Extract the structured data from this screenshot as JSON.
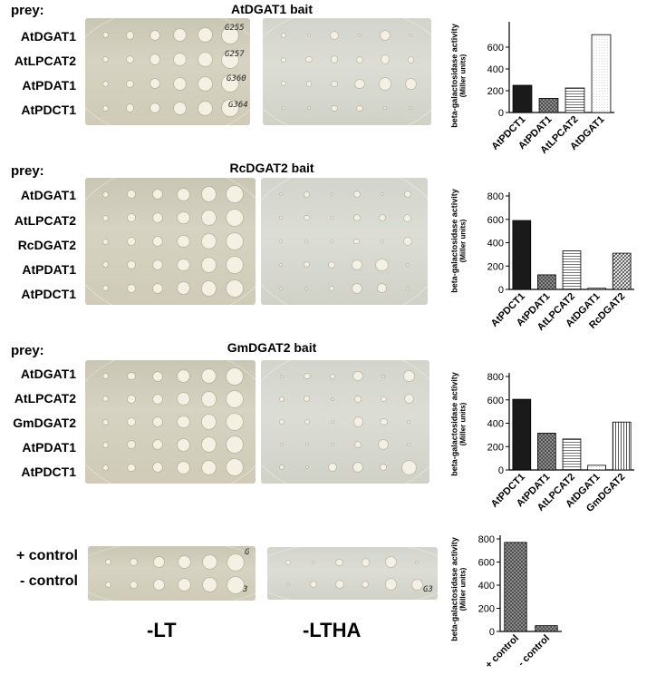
{
  "panels": [
    {
      "title": "AtDGAT1 bait",
      "prey_label": "prey:",
      "rows": [
        "AtDGAT1",
        "AtLPCAT2",
        "AtPDAT1",
        "AtPDCT1"
      ],
      "plate_marks": [
        "G255",
        "G257",
        "G360",
        "G364"
      ],
      "ylabel_line1": "beta-galactosidase activity",
      "ylabel_line2": "(Miller units)"
    },
    {
      "title": "RcDGAT2 bait",
      "prey_label": "prey:",
      "rows": [
        "AtDGAT1",
        "AtLPCAT2",
        "RcDGAT2",
        "AtPDAT1",
        "AtPDCT1"
      ],
      "plate_marks": [],
      "ylabel_line1": "beta-galactosidase activity",
      "ylabel_line2": "(Miller units)"
    },
    {
      "title": "GmDGAT2 bait",
      "prey_label": "prey:",
      "rows": [
        "AtDGAT1",
        "AtLPCAT2",
        "GmDGAT2",
        "AtPDAT1",
        "AtPDCT1"
      ],
      "plate_marks": [],
      "ylabel_line1": "beta-galactosidase activity",
      "ylabel_line2": "(Miller units)"
    },
    {
      "title": "",
      "prey_label": "",
      "rows": [
        "+ control",
        "- control"
      ],
      "plate_marks": [
        "G",
        "3",
        "G3"
      ],
      "ylabel_line1": "beta-galactosidase activity",
      "ylabel_line2": "(Miller units)"
    }
  ],
  "plate_labels": {
    "left": "-LT",
    "right": "-LTHA"
  },
  "chart_data": [
    {
      "type": "bar",
      "categories": [
        "AtPDCT1",
        "AtPDAT1",
        "AtLPCAT2",
        "AtDGAT1"
      ],
      "values": [
        250,
        130,
        225,
        715
      ],
      "patterns": [
        "solid",
        "crosshatch",
        "hlines",
        "dots"
      ],
      "ylim": [
        0,
        800
      ],
      "yticks": [
        0,
        200,
        400,
        600
      ],
      "ylabel": "beta-galactosidase activity (Miller units)"
    },
    {
      "type": "bar",
      "categories": [
        "AtPDCT1",
        "AtPDAT1",
        "AtLPCAT2",
        "AtDGAT1",
        "RcDGAT2"
      ],
      "values": [
        590,
        125,
        330,
        10,
        310
      ],
      "patterns": [
        "solid",
        "crosshatch",
        "hlines",
        "dots",
        "diagonal"
      ],
      "ylim": [
        0,
        800
      ],
      "yticks": [
        0,
        200,
        400,
        600,
        800
      ],
      "ylabel": "beta-galactosidase activity (Miller units)"
    },
    {
      "type": "bar",
      "categories": [
        "AtPDCT1",
        "AtPDAT1",
        "AtLPCAT2",
        "AtDGAT1",
        "GmDGAT2"
      ],
      "values": [
        605,
        315,
        265,
        40,
        410
      ],
      "patterns": [
        "solid",
        "crosshatch",
        "hlines",
        "dots",
        "vlines"
      ],
      "ylim": [
        0,
        800
      ],
      "yticks": [
        0,
        200,
        400,
        600,
        800
      ],
      "ylabel": "beta-galactosidase activity (Miller units)"
    },
    {
      "type": "bar",
      "categories": [
        "+ control",
        "- control"
      ],
      "values": [
        770,
        50
      ],
      "patterns": [
        "crosshatch",
        "crosshatch"
      ],
      "ylim": [
        0,
        800
      ],
      "yticks": [
        0,
        200,
        400,
        600,
        800
      ],
      "ylabel": "beta-galactosidase activity (Miller units)"
    }
  ]
}
